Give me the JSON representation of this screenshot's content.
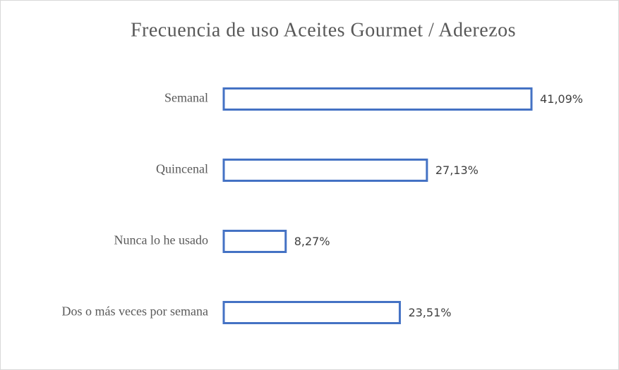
{
  "chart_data": {
    "type": "barh",
    "title": "Frecuencia de uso Aceites Gourmet / Aderezos",
    "categories": [
      "Semanal",
      "Quincenal",
      "Nunca lo he usado",
      "Dos o más veces por semana"
    ],
    "values": [
      41.09,
      27.13,
      8.27,
      23.51
    ],
    "value_labels": [
      "41,09%",
      "27,13%",
      "8,27%",
      "23,51%"
    ],
    "color": "#4472c4"
  }
}
